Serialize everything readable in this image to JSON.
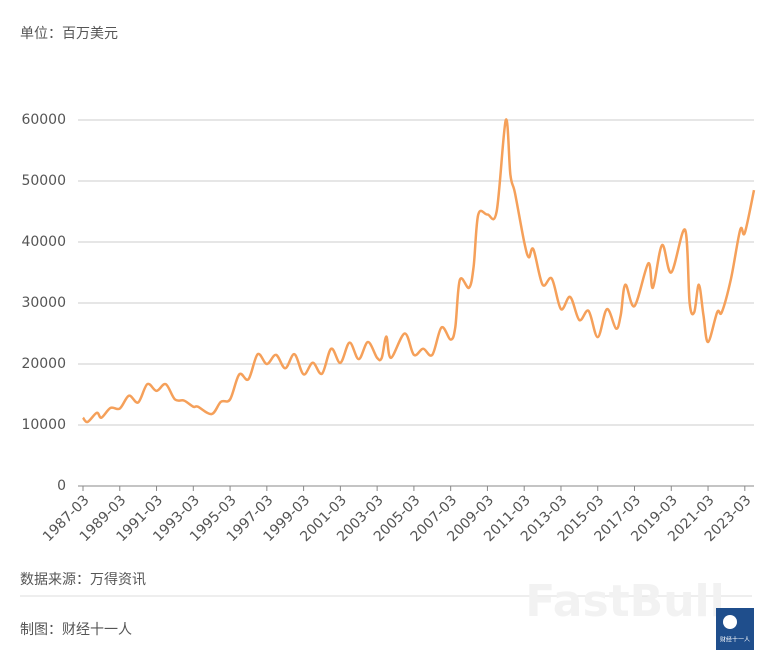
{
  "chart_data": {
    "type": "line",
    "unit_label": "单位：百万美元",
    "source": "数据来源：万得资讯",
    "credit": "制图：财经十一人",
    "watermark": "FastBull",
    "logo_text": "财经十一人",
    "x": [
      "1987-03",
      "1987-06",
      "1987-12",
      "1988-03",
      "1988-09",
      "1989-03",
      "1989-09",
      "1990-03",
      "1990-09",
      "1991-03",
      "1991-09",
      "1992-03",
      "1992-09",
      "1993-03",
      "1993-06",
      "1994-03",
      "1994-09",
      "1995-03",
      "1995-09",
      "1996-03",
      "1996-09",
      "1997-03",
      "1997-09",
      "1998-03",
      "1998-09",
      "1999-03",
      "1999-09",
      "2000-03",
      "2000-09",
      "2001-03",
      "2001-09",
      "2002-03",
      "2002-09",
      "2003-03",
      "2003-06",
      "2003-09",
      "2003-12",
      "2004-09",
      "2005-03",
      "2005-09",
      "2006-03",
      "2006-09",
      "2007-03",
      "2007-06",
      "2007-09",
      "2008-03",
      "2008-06",
      "2008-09",
      "2009-03",
      "2009-09",
      "2010-03",
      "2010-06",
      "2010-09",
      "2011-03",
      "2011-06",
      "2011-09",
      "2012-03",
      "2012-09",
      "2013-03",
      "2013-09",
      "2014-03",
      "2014-09",
      "2015-03",
      "2015-09",
      "2016-03",
      "2016-06",
      "2016-09",
      "2017-03",
      "2017-12",
      "2018-03",
      "2018-09",
      "2019-03",
      "2019-12",
      "2020-03",
      "2020-06",
      "2020-09",
      "2020-12",
      "2021-03",
      "2021-09",
      "2021-12",
      "2022-06",
      "2022-12",
      "2023-03",
      "2023-09"
    ],
    "series": [
      {
        "color": "#f5a05a",
        "values": [
          11200,
          10500,
          12000,
          11200,
          12800,
          12700,
          14800,
          13700,
          16700,
          15600,
          16700,
          14200,
          14000,
          13000,
          13000,
          11800,
          13800,
          14200,
          18300,
          17500,
          21600,
          20000,
          21500,
          19300,
          21600,
          18300,
          20200,
          18400,
          22500,
          20200,
          23500,
          20800,
          23600,
          21000,
          21000,
          24500,
          21000,
          25000,
          21500,
          22500,
          21500,
          26000,
          24000,
          26000,
          33800,
          32500,
          36000,
          44500,
          44500,
          45000,
          60000,
          51000,
          48000,
          40000,
          37500,
          38800,
          33000,
          34000,
          29000,
          31000,
          27200,
          28700,
          24400,
          29000,
          25800,
          28000,
          33000,
          29500,
          36500,
          32500,
          39500,
          35000,
          42000,
          30000,
          28500,
          33000,
          28000,
          23600,
          28500,
          28500,
          34000,
          42000,
          41500,
          48500
        ]
      }
    ],
    "xlim": [
      "1987-03",
      "2023-09"
    ],
    "xticks": [
      "1987-03",
      "1989-03",
      "1991-03",
      "1993-03",
      "1995-03",
      "1997-03",
      "1999-03",
      "2001-03",
      "2003-03",
      "2005-03",
      "2007-03",
      "2009-03",
      "2011-03",
      "2013-03",
      "2015-03",
      "2017-03",
      "2019-03",
      "2021-03",
      "2023-03"
    ],
    "ylim": [
      0,
      60000
    ],
    "yticks": [
      0,
      10000,
      20000,
      30000,
      40000,
      50000,
      60000
    ],
    "grid": true
  }
}
